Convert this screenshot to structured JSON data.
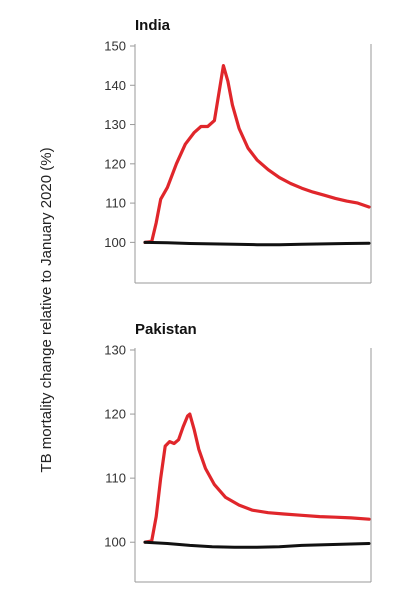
{
  "ylabel": "TB mortality change relative to January 2020 (%)",
  "colors": {
    "scenario": "#e0262b",
    "baseline": "#111111",
    "axis": "#9a9a9a"
  },
  "chart_data": [
    {
      "type": "line",
      "title": "India",
      "xlabel": "",
      "ylabel": "TB mortality change relative to January 2020 (%)",
      "ylim": [
        100,
        150
      ],
      "yticks": [
        100,
        110,
        120,
        130,
        140,
        150
      ],
      "xlim": [
        0,
        100
      ],
      "x_tick_labels": "none",
      "grid": false,
      "series": [
        {
          "color": "#e0262b",
          "points": [
            [
              0,
              100
            ],
            [
              3,
              100.2
            ],
            [
              5,
              105
            ],
            [
              7,
              111
            ],
            [
              10,
              114
            ],
            [
              14,
              120
            ],
            [
              18,
              125
            ],
            [
              22,
              128
            ],
            [
              25,
              129.5
            ],
            [
              28,
              129.5
            ],
            [
              31,
              131
            ],
            [
              33,
              138
            ],
            [
              35,
              145
            ],
            [
              37,
              141
            ],
            [
              39,
              135
            ],
            [
              42,
              129
            ],
            [
              46,
              124
            ],
            [
              50,
              121
            ],
            [
              55,
              118.5
            ],
            [
              60,
              116.5
            ],
            [
              65,
              115
            ],
            [
              70,
              113.8
            ],
            [
              75,
              112.8
            ],
            [
              80,
              112
            ],
            [
              85,
              111.2
            ],
            [
              90,
              110.5
            ],
            [
              95,
              110
            ],
            [
              100,
              109
            ]
          ]
        },
        {
          "color": "#111111",
          "points": [
            [
              0,
              100
            ],
            [
              10,
              99.9
            ],
            [
              20,
              99.7
            ],
            [
              30,
              99.6
            ],
            [
              40,
              99.5
            ],
            [
              50,
              99.4
            ],
            [
              60,
              99.4
            ],
            [
              70,
              99.5
            ],
            [
              80,
              99.6
            ],
            [
              90,
              99.7
            ],
            [
              100,
              99.8
            ]
          ]
        }
      ]
    },
    {
      "type": "line",
      "title": "Pakistan",
      "xlabel": "",
      "ylabel": "TB mortality change relative to January 2020 (%)",
      "ylim": [
        100,
        130
      ],
      "yticks": [
        100,
        110,
        120,
        130
      ],
      "xlim": [
        0,
        100
      ],
      "x_tick_labels": "none",
      "grid": false,
      "series": [
        {
          "color": "#e0262b",
          "points": [
            [
              0,
              100
            ],
            [
              3,
              100.2
            ],
            [
              5,
              104
            ],
            [
              7,
              110
            ],
            [
              9,
              115
            ],
            [
              11,
              115.7
            ],
            [
              13,
              115.4
            ],
            [
              15,
              116
            ],
            [
              17,
              118
            ],
            [
              19,
              119.7
            ],
            [
              20,
              120
            ],
            [
              22,
              117.5
            ],
            [
              24,
              114.5
            ],
            [
              27,
              111.5
            ],
            [
              31,
              109
            ],
            [
              36,
              107
            ],
            [
              42,
              105.8
            ],
            [
              48,
              105
            ],
            [
              55,
              104.6
            ],
            [
              62,
              104.4
            ],
            [
              70,
              104.2
            ],
            [
              78,
              104
            ],
            [
              85,
              103.9
            ],
            [
              92,
              103.8
            ],
            [
              100,
              103.6
            ]
          ]
        },
        {
          "color": "#111111",
          "points": [
            [
              0,
              100
            ],
            [
              10,
              99.8
            ],
            [
              20,
              99.5
            ],
            [
              30,
              99.3
            ],
            [
              40,
              99.2
            ],
            [
              50,
              99.2
            ],
            [
              60,
              99.3
            ],
            [
              70,
              99.5
            ],
            [
              80,
              99.6
            ],
            [
              90,
              99.7
            ],
            [
              100,
              99.8
            ]
          ]
        }
      ]
    }
  ]
}
